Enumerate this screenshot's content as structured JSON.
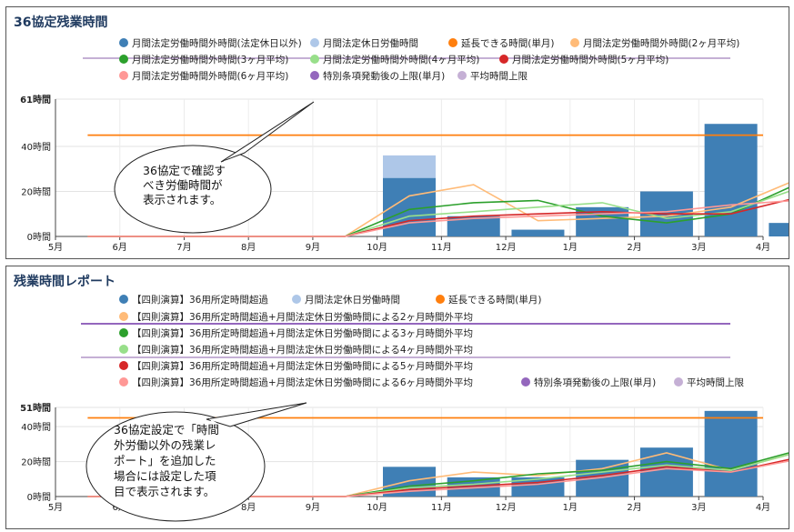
{
  "colors": {
    "bar_main": "#3f7fb5",
    "bar_holiday": "#aec7e8",
    "extendable": "#ff7f0e",
    "avg2": "#ffbb78",
    "avg3": "#2ca02c",
    "avg4": "#98df8a",
    "avg5": "#d62728",
    "avg6": "#ff9896",
    "special_limit": "#9467bd",
    "avg_limit": "#c5b0d5"
  },
  "chart_data": [
    {
      "type": "bar",
      "title": "36協定残業時間",
      "categories": [
        "5月",
        "6月",
        "7月",
        "8月",
        "9月",
        "10月",
        "11月",
        "12月",
        "1月",
        "2月",
        "3月",
        "4月"
      ],
      "ylim": [
        0,
        61
      ],
      "y_top_label": "61時間",
      "yticks": [
        {
          "value": 0,
          "label": "0時間"
        },
        {
          "value": 20,
          "label": "20時間"
        },
        {
          "value": 40,
          "label": "40時間"
        }
      ],
      "series": [
        {
          "name": "月間法定労働時間外時間(法定休日以外)",
          "kind": "bar",
          "color_key": "bar_main",
          "values": [
            null,
            null,
            null,
            null,
            null,
            26,
            9,
            3,
            13,
            20,
            50,
            6
          ]
        },
        {
          "name": "月間法定休日労働時間",
          "kind": "bar",
          "color_key": "bar_holiday",
          "values": [
            null,
            null,
            null,
            null,
            null,
            10,
            0,
            0,
            0,
            0,
            0,
            0
          ]
        },
        {
          "name": "延長できる時間(単月)",
          "kind": "line",
          "color_key": "extendable",
          "values": [
            45,
            45,
            45,
            45,
            45,
            45,
            45,
            45,
            45,
            45,
            45,
            45
          ]
        },
        {
          "name": "月間法定労働時間外時間(2ヶ月平均)",
          "kind": "line",
          "color_key": "avg2",
          "values": [
            0,
            0,
            0,
            0,
            0,
            18,
            23,
            7,
            8,
            9,
            13,
            25
          ]
        },
        {
          "name": "月間法定労働時間外時間(3ヶ月平均)",
          "kind": "line",
          "color_key": "avg3",
          "values": [
            0,
            0,
            0,
            0,
            0,
            12,
            15,
            16,
            9,
            6,
            10,
            23
          ]
        },
        {
          "name": "月間法定労働時間外時間(4ヶ月平均)",
          "kind": "line",
          "color_key": "avg4",
          "values": [
            0,
            0,
            0,
            0,
            0,
            9,
            11,
            13,
            15,
            8,
            11,
            21
          ]
        },
        {
          "name": "月間法定労働時間外時間(5ヶ月平均)",
          "kind": "line",
          "color_key": "avg5",
          "values": [
            0,
            0,
            0,
            0,
            0,
            7,
            9,
            10,
            11,
            10,
            10,
            17
          ]
        },
        {
          "name": "月間法定労働時間外時間(6ヶ月平均)",
          "kind": "line",
          "color_key": "avg6",
          "values": [
            0,
            0,
            0,
            0,
            0,
            6,
            8,
            9,
            10,
            11,
            14,
            16
          ]
        },
        {
          "name": "特別条項発動後の上限(単月)",
          "kind": "legend_only",
          "color_key": "special_limit"
        },
        {
          "name": "平均時間上限",
          "kind": "legend_only",
          "color_key": "avg_limit"
        }
      ],
      "callout": [
        "36協定で確認す",
        "べき労働時間が",
        "表示されます。"
      ]
    },
    {
      "type": "bar",
      "title": "残業時間レポート",
      "categories": [
        "5月",
        "6月",
        "7月",
        "8月",
        "9月",
        "10月",
        "11月",
        "12月",
        "1月",
        "2月",
        "3月",
        "4月"
      ],
      "ylim": [
        0,
        51
      ],
      "y_top_label": "51時間",
      "yticks": [
        {
          "value": 0,
          "label": "0時間"
        },
        {
          "value": 20,
          "label": "20時間"
        },
        {
          "value": 40,
          "label": "40時間"
        }
      ],
      "series": [
        {
          "name": "【四則演算】36用所定時間超過",
          "kind": "bar",
          "color_key": "bar_main",
          "values": [
            null,
            null,
            null,
            null,
            null,
            17,
            11,
            11,
            21,
            28,
            49,
            null
          ]
        },
        {
          "name": "月間法定休日労働時間",
          "kind": "bar",
          "color_key": "bar_holiday",
          "values": [
            null,
            null,
            null,
            null,
            null,
            0,
            0,
            0,
            0,
            0,
            0,
            null
          ]
        },
        {
          "name": "延長できる時間(単月)",
          "kind": "line",
          "color_key": "extendable",
          "values": [
            45,
            45,
            45,
            45,
            45,
            45,
            45,
            45,
            45,
            45,
            45,
            45
          ]
        },
        {
          "name": "【四則演算】36用所定時間超過+月間法定休日労働時間による2ヶ月時間外平均",
          "kind": "line",
          "color_key": "avg2",
          "values": [
            0,
            0,
            0,
            0,
            0,
            9,
            14,
            12,
            16,
            25,
            15,
            25
          ]
        },
        {
          "name": "【四則演算】36用所定時間超過+月間法定休日労働時間による3ヶ月時間外平均",
          "kind": "line",
          "color_key": "avg3",
          "values": [
            0,
            0,
            0,
            0,
            0,
            6,
            9,
            13,
            15,
            20,
            16,
            26
          ]
        },
        {
          "name": "【四則演算】36用所定時間超過+月間法定休日労働時間による4ヶ月時間外平均",
          "kind": "line",
          "color_key": "avg4",
          "values": [
            0,
            0,
            0,
            0,
            0,
            5,
            7,
            10,
            14,
            18,
            15,
            25
          ]
        },
        {
          "name": "【四則演算】36用所定時間超過+月間法定休日労働時間による5ヶ月時間外平均",
          "kind": "line",
          "color_key": "avg5",
          "values": [
            0,
            0,
            0,
            0,
            0,
            4,
            6,
            8,
            12,
            17,
            14,
            22
          ]
        },
        {
          "name": "【四則演算】36用所定時間超過+月間法定休日労働時間による6ヶ月時間外平均",
          "kind": "line",
          "color_key": "avg6",
          "values": [
            0,
            0,
            0,
            0,
            0,
            3,
            5,
            7,
            11,
            16,
            14,
            21
          ]
        },
        {
          "name": "特別条項発動後の上限(単月)",
          "kind": "legend_only",
          "color_key": "special_limit"
        },
        {
          "name": "平均時間上限",
          "kind": "legend_only",
          "color_key": "avg_limit"
        }
      ],
      "callout": [
        "36協定設定で「時間",
        "外労働以外の残業レ",
        "ポート」を追加した",
        "場合には設定した項",
        "目で表示されます。"
      ]
    }
  ]
}
